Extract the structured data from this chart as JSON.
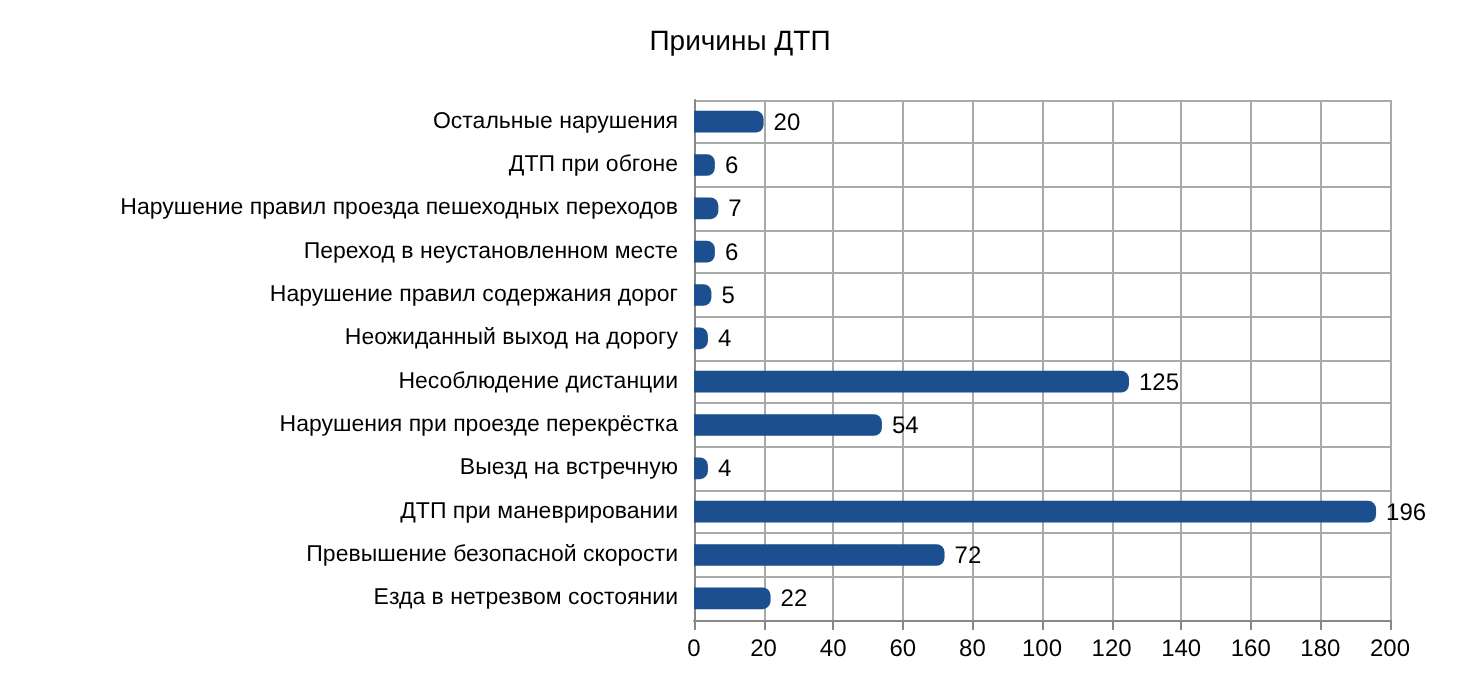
{
  "chart_data": {
    "type": "bar",
    "title": "Причины ДТП",
    "orientation": "horizontal",
    "categories": [
      "Остальные нарушения",
      "ДТП при обгоне",
      "Нарушение правил проезда пешеходных переходов",
      "Переход в неустановленном месте",
      "Нарушение правил содержания дорог",
      "Неожиданный выход на дорогу",
      "Несоблюдение дистанции",
      "Нарушения при проезде перекрёстка",
      "Выезд на встречную",
      "ДТП при маневрировании",
      "Превышение безопасной скорости",
      "Езда в нетрезвом состоянии"
    ],
    "values": [
      20,
      6,
      7,
      6,
      5,
      4,
      125,
      54,
      4,
      196,
      72,
      22
    ],
    "color": "#1c4f8f",
    "xlim": [
      0,
      200
    ],
    "xticks": [
      0,
      20,
      40,
      60,
      80,
      100,
      120,
      140,
      160,
      180,
      200
    ],
    "grid": true,
    "data_labels": true
  }
}
